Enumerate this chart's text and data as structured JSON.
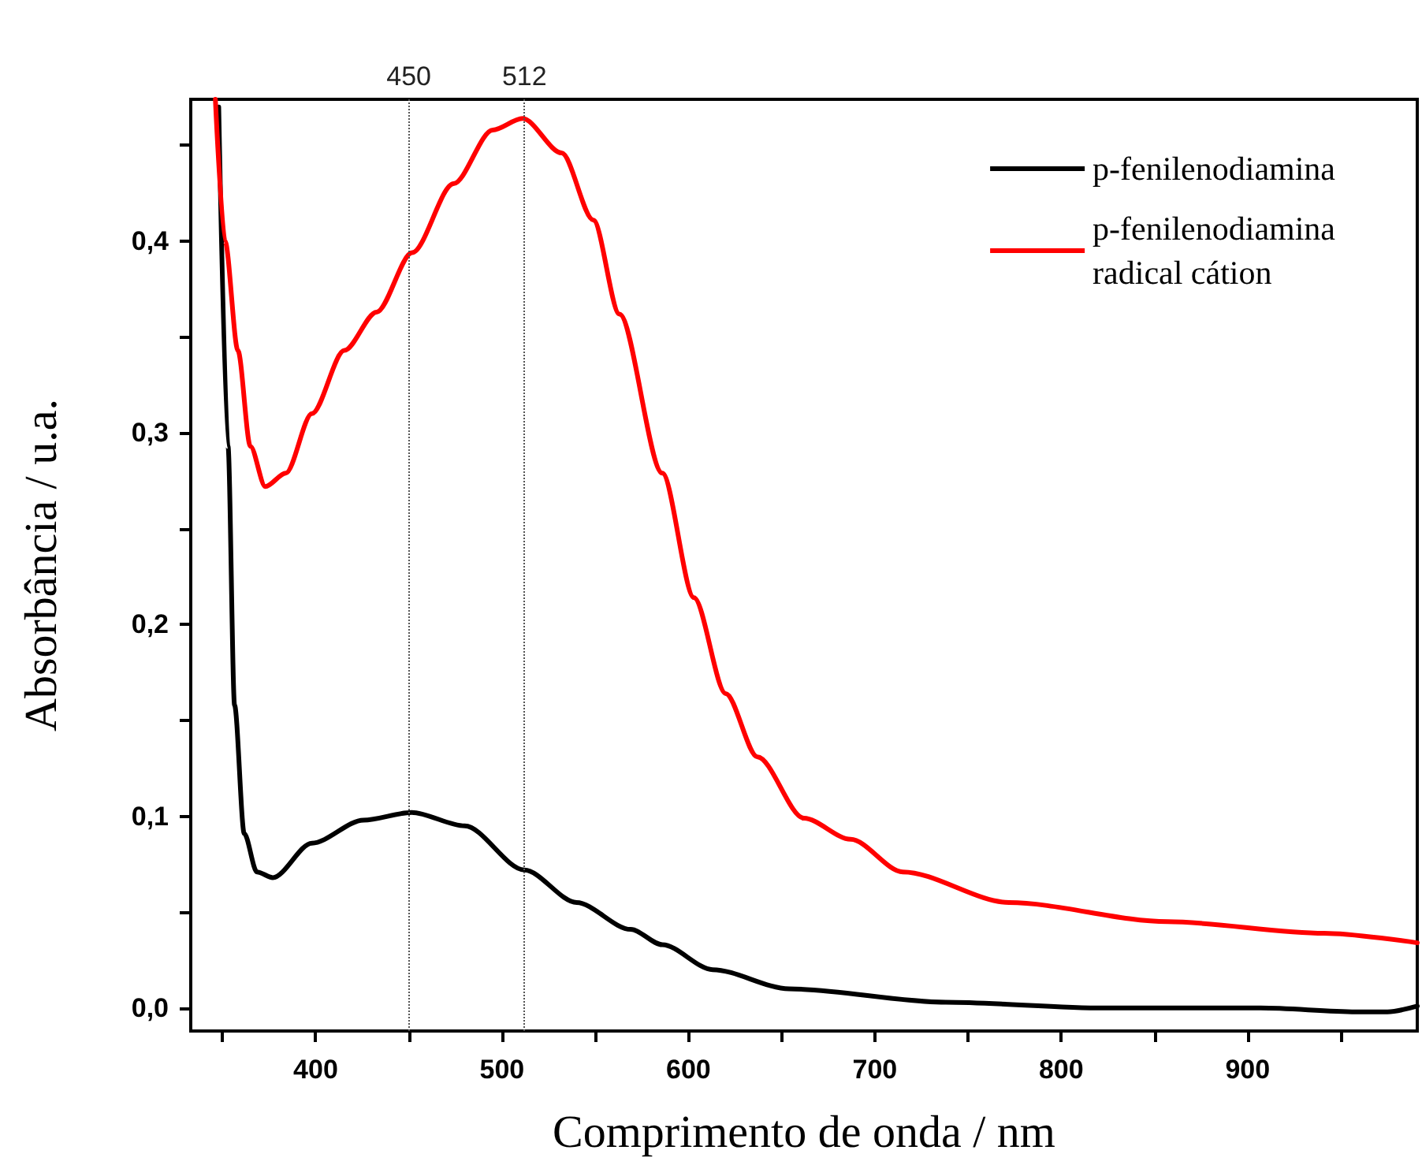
{
  "chart_data": {
    "type": "line",
    "xlabel": "Comprimento de onda / nm",
    "ylabel": "Absorbância / u.a.",
    "xlim": [
      333,
      991
    ],
    "ylim": [
      -0.012,
      0.474
    ],
    "xticks": [
      {
        "value": 350,
        "label": null
      },
      400,
      {
        "value": 450,
        "label": null
      },
      500,
      {
        "value": 550,
        "label": null
      },
      600,
      {
        "value": 650,
        "label": null
      },
      700,
      {
        "value": 750,
        "label": null
      },
      800,
      {
        "value": 850,
        "label": null
      },
      900,
      {
        "value": 950,
        "label": null
      }
    ],
    "yticks": [
      {
        "value": 0,
        "label": "0,0"
      },
      {
        "value": 0.05,
        "label": null
      },
      {
        "value": 0.1,
        "label": "0,1"
      },
      {
        "value": 0.15,
        "label": null
      },
      {
        "value": 0.2,
        "label": "0,2"
      },
      {
        "value": 0.25,
        "label": null
      },
      {
        "value": 0.3,
        "label": "0,3"
      },
      {
        "value": 0.35,
        "label": null
      },
      {
        "value": 0.4,
        "label": "0,4"
      },
      {
        "value": 0.45,
        "label": null
      }
    ],
    "grid": false,
    "legend": "top right",
    "marker": "none",
    "line_style": "solid",
    "ref_lines": [
      {
        "axis": "x",
        "value": 450,
        "label": "450",
        "color": "#555555",
        "line_style": "dotted"
      },
      {
        "axis": "x",
        "value": 512,
        "label": "512",
        "color": "#555555",
        "line_style": "dotted"
      }
    ],
    "series": [
      {
        "name": "p-fenilenodiamina",
        "color": "#000000",
        "x": [
          348,
          353,
          356.5,
          361.7,
          368.5,
          377,
          398,
          425.7,
          451.5,
          480,
          512,
          540,
          569,
          586,
          613,
          654,
          738,
          823,
          907,
          958,
          975,
          991
        ],
        "values": [
          0.47,
          0.293,
          0.158,
          0.091,
          0.071,
          0.068,
          0.086,
          0.098,
          0.102,
          0.095,
          0.072,
          0.055,
          0.041,
          0.033,
          0.02,
          0.01,
          0.003,
          0,
          0,
          -0.002,
          -0.002,
          0.001
        ]
      },
      {
        "name": "p-fenilenodiamina\nradical cátion",
        "color": "#ff0000",
        "x": [
          346.2,
          351.4,
          358.3,
          365,
          373,
          384,
          398,
          415.4,
          432.7,
          451.8,
          474,
          495,
          511,
          532,
          549,
          563,
          586,
          603,
          620,
          637,
          662,
          687,
          715,
          772,
          857,
          941,
          991
        ],
        "values": [
          0.474,
          0.4,
          0.343,
          0.293,
          0.272,
          0.279,
          0.31,
          0.343,
          0.363,
          0.394,
          0.43,
          0.458,
          0.464,
          0.446,
          0.411,
          0.362,
          0.279,
          0.214,
          0.164,
          0.131,
          0.099,
          0.088,
          0.071,
          0.055,
          0.045,
          0.039,
          0.034
        ]
      }
    ]
  }
}
